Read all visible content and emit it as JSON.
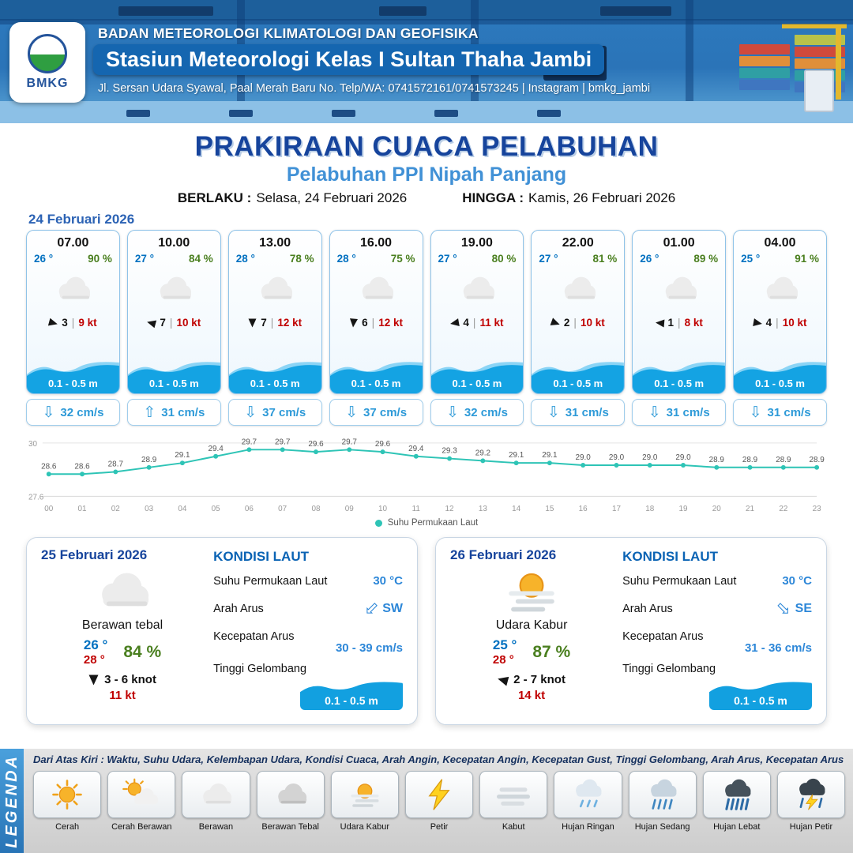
{
  "header": {
    "agency": "BADAN METEOROLOGI KLIMATOLOGI DAN GEOFISIKA",
    "station": "Stasiun Meteorologi Kelas I Sultan Thaha Jambi",
    "contact": "Jl. Sersan Udara Syawal, Paal Merah Baru No. Telp/WA: 0741572161/0741573245 | Instagram | bmkg_jambi",
    "logo_text": "BMKG"
  },
  "title": {
    "main": "PRAKIRAAN CUACA PELABUHAN",
    "subtitle": "Pelabuhan PPI Nipah Panjang",
    "valid_label": "BERLAKU :",
    "valid_value": "Selasa, 24 Februari 2026",
    "until_label": "HINGGA :",
    "until_value": "Kamis, 26 Februari 2026"
  },
  "forecast": {
    "date_label": "24 Februari 2026",
    "cards": [
      {
        "time": "07.00",
        "temp": "26 °",
        "rh": "90 %",
        "icon": "cloud",
        "wind_n": "3",
        "wind_kt": "9 kt",
        "wind_deg": 15,
        "wave": "0.1 - 0.5 m",
        "current": "32 cm/s",
        "current_arrow": "down"
      },
      {
        "time": "10.00",
        "temp": "27 °",
        "rh": "84 %",
        "icon": "cloud",
        "wind_n": "7",
        "wind_kt": "10 kt",
        "wind_deg": 195,
        "wave": "0.1 - 0.5 m",
        "current": "31 cm/s",
        "current_arrow": "up"
      },
      {
        "time": "13.00",
        "temp": "28 °",
        "rh": "78 %",
        "icon": "cloud",
        "wind_n": "7",
        "wind_kt": "12 kt",
        "wind_deg": 90,
        "wave": "0.1 - 0.5 m",
        "current": "37 cm/s",
        "current_arrow": "down"
      },
      {
        "time": "16.00",
        "temp": "28 °",
        "rh": "75 %",
        "icon": "cloud",
        "wind_n": "6",
        "wind_kt": "12 kt",
        "wind_deg": 95,
        "wave": "0.1 - 0.5 m",
        "current": "37 cm/s",
        "current_arrow": "down"
      },
      {
        "time": "19.00",
        "temp": "27 °",
        "rh": "80 %",
        "icon": "cloud",
        "wind_n": "4",
        "wind_kt": "11 kt",
        "wind_deg": 170,
        "wave": "0.1 - 0.5 m",
        "current": "32 cm/s",
        "current_arrow": "down"
      },
      {
        "time": "22.00",
        "temp": "27 °",
        "rh": "81 %",
        "icon": "cloud",
        "wind_n": "2",
        "wind_kt": "10 kt",
        "wind_deg": 20,
        "wave": "0.1 - 0.5 m",
        "current": "31 cm/s",
        "current_arrow": "down"
      },
      {
        "time": "01.00",
        "temp": "26 °",
        "rh": "89 %",
        "icon": "cloud",
        "wind_n": "1",
        "wind_kt": "8 kt",
        "wind_deg": 185,
        "wave": "0.1 - 0.5 m",
        "current": "31 cm/s",
        "current_arrow": "down"
      },
      {
        "time": "04.00",
        "temp": "25 °",
        "rh": "91 %",
        "icon": "cloud",
        "wind_n": "4",
        "wind_kt": "10 kt",
        "wind_deg": 10,
        "wave": "0.1 - 0.5 m",
        "current": "31 cm/s",
        "current_arrow": "down"
      }
    ]
  },
  "chart_data": {
    "type": "line",
    "legend": "Suhu Permukaan Laut",
    "color": "#2ec4b6",
    "ylim": [
      27.6,
      30
    ],
    "x": [
      "00",
      "01",
      "02",
      "03",
      "04",
      "05",
      "06",
      "07",
      "08",
      "09",
      "10",
      "11",
      "12",
      "13",
      "14",
      "15",
      "16",
      "17",
      "18",
      "19",
      "20",
      "21",
      "22",
      "23"
    ],
    "series": [
      {
        "name": "Suhu Permukaan Laut",
        "values": [
          28.6,
          28.6,
          28.7,
          28.9,
          29.1,
          29.4,
          29.7,
          29.7,
          29.6,
          29.7,
          29.6,
          29.4,
          29.3,
          29.2,
          29.1,
          29.1,
          29.0,
          29.0,
          29.0,
          29.0,
          28.9,
          28.9,
          28.9,
          28.9
        ]
      }
    ]
  },
  "sea_labels": {
    "title": "KONDISI LAUT",
    "sst": "Suhu Permukaan Laut",
    "dir": "Arah Arus",
    "speed": "Kecepatan Arus",
    "wave": "Tinggi Gelombang"
  },
  "days": [
    {
      "date": "25 Februari 2026",
      "icon": "cloud",
      "condition": "Berawan tebal",
      "temp_min": "26 °",
      "temp_max": "28 °",
      "rh": "84 %",
      "wind_deg": 90,
      "wind_range": "3 - 6 knot",
      "gust": "11 kt",
      "sst": "30 °C",
      "dir": "SW",
      "dir_deg": 135,
      "speed": "30 - 39 cm/s",
      "wave": "0.1 - 0.5 m"
    },
    {
      "date": "26 Februari 2026",
      "icon": "haze",
      "condition": "Udara Kabur",
      "temp_min": "25 °",
      "temp_max": "28 °",
      "rh": "87 %",
      "wind_deg": 195,
      "wind_range": "2 - 7 knot",
      "gust": "14 kt",
      "sst": "30 °C",
      "dir": "SE",
      "dir_deg": 45,
      "speed": "31 - 36 cm/s",
      "wave": "0.1 - 0.5 m"
    }
  ],
  "legend": {
    "strip": "LEGENDA",
    "caption": "Dari Atas Kiri : Waktu, Suhu Udara, Kelembapan Udara, Kondisi Cuaca, Arah Angin, Kecepatan Angin, Kecepatan Gust, Tinggi Gelombang, Arah Arus, Kecepatan Arus",
    "items": [
      {
        "label": "Cerah",
        "icon": "sun"
      },
      {
        "label": "Cerah Berawan",
        "icon": "suncloud"
      },
      {
        "label": "Berawan",
        "icon": "cloud"
      },
      {
        "label": "Berawan Tebal",
        "icon": "cloudthick"
      },
      {
        "label": "Udara Kabur",
        "icon": "haze"
      },
      {
        "label": "Petir",
        "icon": "bolt"
      },
      {
        "label": "Kabut",
        "icon": "fog"
      },
      {
        "label": "Hujan Ringan",
        "icon": "rain1"
      },
      {
        "label": "Hujan Sedang",
        "icon": "rain2"
      },
      {
        "label": "Hujan Lebat",
        "icon": "rain3"
      },
      {
        "label": "Hujan Petir",
        "icon": "storm"
      }
    ]
  }
}
